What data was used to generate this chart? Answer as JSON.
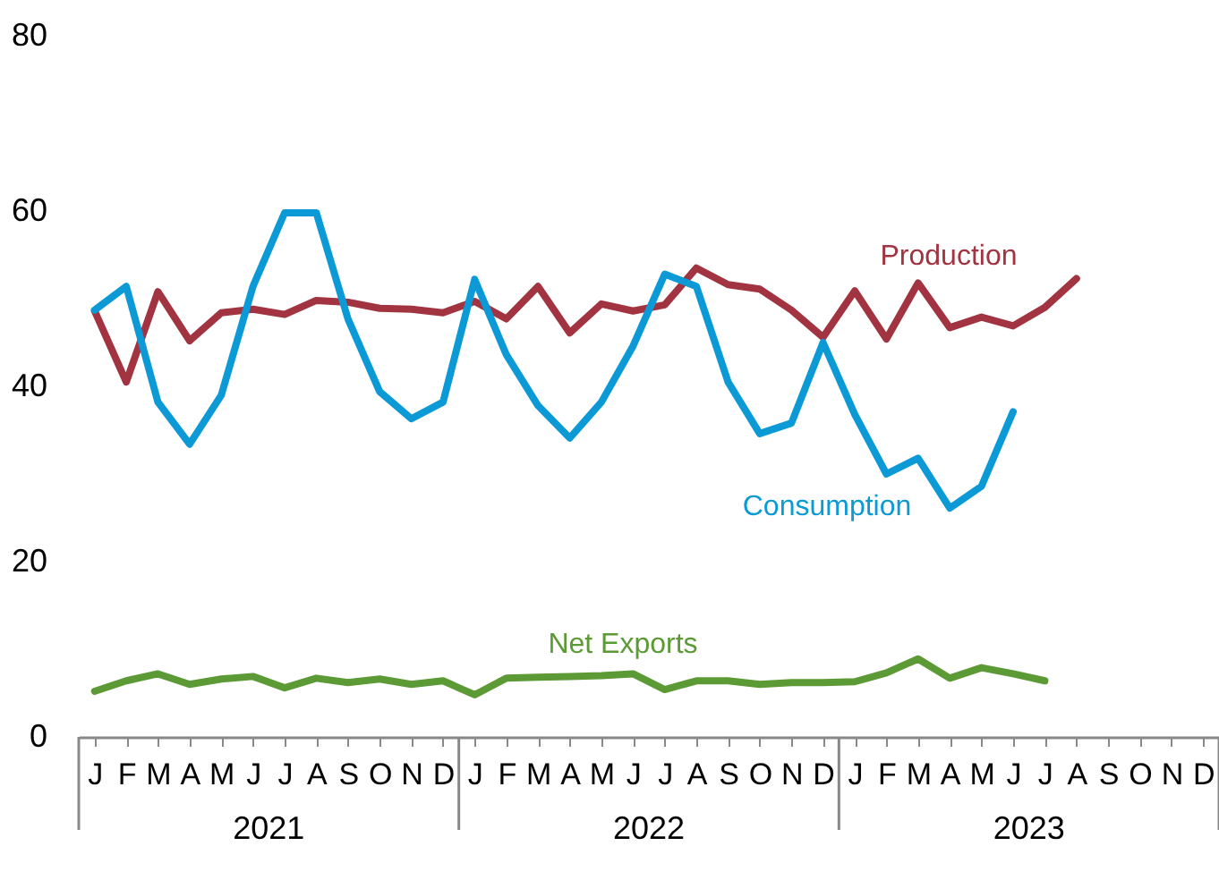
{
  "chart_data": {
    "type": "line",
    "categories": [
      "J",
      "F",
      "M",
      "A",
      "M",
      "J",
      "J",
      "A",
      "S",
      "O",
      "N",
      "D",
      "J",
      "F",
      "M",
      "A",
      "M",
      "J",
      "J",
      "A",
      "S",
      "O",
      "N",
      "D",
      "J",
      "F",
      "M",
      "A",
      "M",
      "J",
      "J",
      "A",
      "S",
      "O",
      "N",
      "D"
    ],
    "annotations": [
      "2021",
      "2022",
      "2023"
    ],
    "ylim": [
      0,
      80
    ],
    "yticks": [
      0,
      20,
      40,
      60,
      80
    ],
    "grid": false,
    "legend": false,
    "marker": "none",
    "line_style": "solid",
    "series": [
      {
        "name": "Production",
        "color": "#a23340",
        "values": [
          48.6,
          40.5,
          50.8,
          45.2,
          48.4,
          48.8,
          48.2,
          49.8,
          49.6,
          48.9,
          48.8,
          48.4,
          49.7,
          47.7,
          51.4,
          46.1,
          49.4,
          48.6,
          49.3,
          53.5,
          51.6,
          51.1,
          48.7,
          45.6,
          50.9,
          45.4,
          51.8,
          46.7,
          47.9,
          46.9,
          49.0,
          52.3,
          null,
          null,
          null,
          null
        ]
      },
      {
        "name": "Consumption",
        "color": "#0c9ad6",
        "values": [
          48.7,
          51.4,
          38.2,
          33.4,
          39.0,
          51.4,
          59.8,
          59.8,
          47.7,
          39.4,
          36.3,
          38.2,
          52.2,
          43.6,
          37.8,
          34.1,
          38.2,
          44.6,
          52.8,
          51.4,
          40.5,
          34.6,
          35.8,
          45.0,
          36.8,
          30.0,
          31.8,
          26.1,
          28.6,
          37.1,
          null,
          null,
          null,
          null,
          null,
          null
        ]
      },
      {
        "name": "Net Exports",
        "color": "#5c9a35",
        "values": [
          5.2,
          6.4,
          7.2,
          6.0,
          6.6,
          6.9,
          5.6,
          6.7,
          6.2,
          6.6,
          6.0,
          6.4,
          4.8,
          6.7,
          6.8,
          6.9,
          7.0,
          7.2,
          5.4,
          6.4,
          6.4,
          6.0,
          6.2,
          6.2,
          6.3,
          7.3,
          8.9,
          6.7,
          7.9,
          7.2,
          6.4,
          null,
          null,
          null,
          null,
          null
        ]
      }
    ]
  }
}
